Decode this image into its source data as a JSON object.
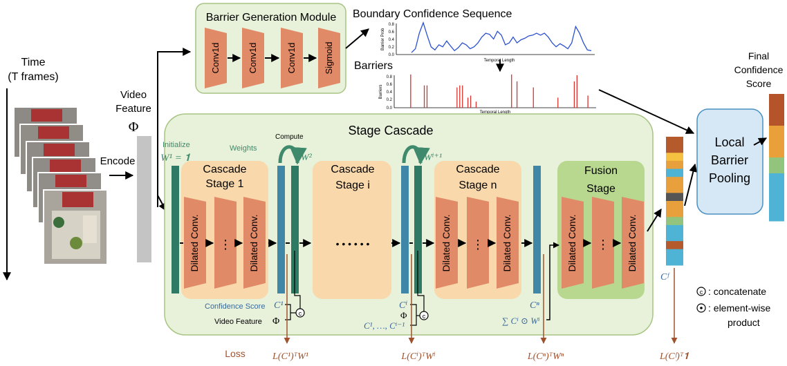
{
  "colors": {
    "cascade_bg": "#e8f1d9",
    "cascade_border": "#a7c483",
    "stage_bg": "#f9d9ab",
    "fusion_bg": "#b8d78f",
    "conv_fill": "#e08a67",
    "bar_dark": "#2f7a65",
    "bar_blue": "#3f86a7",
    "lbp_fill": "#d6e8f5",
    "lbp_border": "#4a8fbf",
    "loss_red": "#a0522d",
    "weight_green": "#3f8a6c",
    "conf_blue": "#3a6a9c",
    "plot_blue": "#2a4fd1",
    "plot_red": "#d9302c"
  },
  "labels": {
    "time": "Time",
    "time_frames": "(T frames)",
    "encode": "Encode",
    "video_feature": "Video",
    "video_feature2": "Feature",
    "phi": "Φ",
    "barrier_module_title": "Barrier Generation Module",
    "conv1d": "Conv1d",
    "sigmoid": "Sigmoid",
    "bcs_title": "Boundary Confidence Sequence",
    "barriers_title": "Barriers",
    "temporal_length": "Temporal Length",
    "barrier_prob": "Barrier Prob",
    "barriers_axis": "Barriers",
    "stage_cascade": "Stage Cascade",
    "initialize": "Initialize",
    "w1_init": "W¹ = 𝟏",
    "weights": "Weights",
    "compute": "Compute",
    "w2": "W²",
    "wi1": "Wⁱ⁺¹",
    "cascade_stage_1_a": "Cascade",
    "cascade_stage_1_b": "Stage 1",
    "cascade_stage_i_a": "Cascade",
    "cascade_stage_i_b": "Stage i",
    "cascade_stage_n_a": "Cascade",
    "cascade_stage_n_b": "Stage n",
    "fusion_a": "Fusion",
    "fusion_b": "Stage",
    "dilated_conv": "Dilated Conv.",
    "dots_v": "⋮",
    "dots_h": "• • • • • •",
    "confidence_score": "Confidence Score",
    "video_feature_small": "Video Feature",
    "c1": "C¹",
    "ci": "Cⁱ",
    "cn": "Cⁿ",
    "cf": "Cᶠ",
    "c_list": "C¹, …, Cⁱ⁻¹",
    "sum_expr": "∑ Cⁱ ⊙ Wⁱ",
    "circ_c": "c",
    "loss": "Loss",
    "loss1": "L(C¹)ᵀW¹",
    "lossi": "L(Cⁱ)ᵀWⁱ",
    "lossn": "L(Cⁿ)ᵀWⁿ",
    "lossf": "L(Cᶠ)ᵀ𝟏",
    "local_barrier_pooling_a": "Local",
    "local_barrier_pooling_b": "Barrier",
    "local_barrier_pooling_c": "Pooling",
    "final_a": "Final",
    "final_b": "Confidence",
    "final_c": "Score",
    "legend_concat": ": concatenate",
    "legend_elem_a": ": element-wise",
    "legend_elem_b": "product",
    "tick_08": "0.8",
    "tick_06": "0.6",
    "tick_04": "0.4",
    "tick_02": "0.2",
    "tick_00": "0.0"
  },
  "chart_data": [
    {
      "type": "line",
      "title": "Boundary Confidence Sequence",
      "xlabel": "Temporal Length",
      "ylabel": "Barrier Prob",
      "ylim": [
        0,
        0.8
      ],
      "y": [
        0.05,
        0.15,
        0.55,
        0.82,
        0.5,
        0.2,
        0.12,
        0.25,
        0.2,
        0.35,
        0.22,
        0.1,
        0.18,
        0.3,
        0.25,
        0.15,
        0.2,
        0.3,
        0.45,
        0.55,
        0.52,
        0.4,
        0.6,
        0.5,
        0.25,
        0.3,
        0.45,
        0.3,
        0.38,
        0.42,
        0.48,
        0.5,
        0.55,
        0.5,
        0.55,
        0.45,
        0.3,
        0.2,
        0.28,
        0.22,
        0.15,
        0.3,
        0.72,
        0.55,
        0.3,
        0.12,
        0.1
      ]
    },
    {
      "type": "bar",
      "title": "Barriers",
      "xlabel": "Temporal Length",
      "ylabel": "Barriers",
      "ylim": [
        0,
        0.8
      ],
      "x": [
        3,
        8,
        9,
        20,
        21,
        22,
        24,
        25,
        27,
        40,
        42,
        48,
        57,
        63,
        64,
        68
      ],
      "values": [
        0.82,
        0.55,
        0.55,
        0.5,
        0.55,
        0.55,
        0.25,
        0.3,
        0.15,
        0.82,
        0.65,
        0.5,
        0.25,
        0.65,
        0.8,
        0.3
      ]
    }
  ],
  "cf_bar": [
    "#b55a2c",
    "#b55a2c",
    "#f6c040",
    "#e8a03c",
    "#4fb3d6",
    "#e8a03c",
    "#e8a03c",
    "#555555",
    "#e8a03c",
    "#e8a03c",
    "#93c47d",
    "#4fb3d6",
    "#4fb3d6",
    "#b55a2c",
    "#4fb3d6",
    "#4fb3d6"
  ],
  "final_bar": [
    "#b5532b",
    "#b5532b",
    "#e9a03b",
    "#e9a03b",
    "#93c47d",
    "#4fb3d6",
    "#4fb3d6",
    "#4fb3d6"
  ]
}
